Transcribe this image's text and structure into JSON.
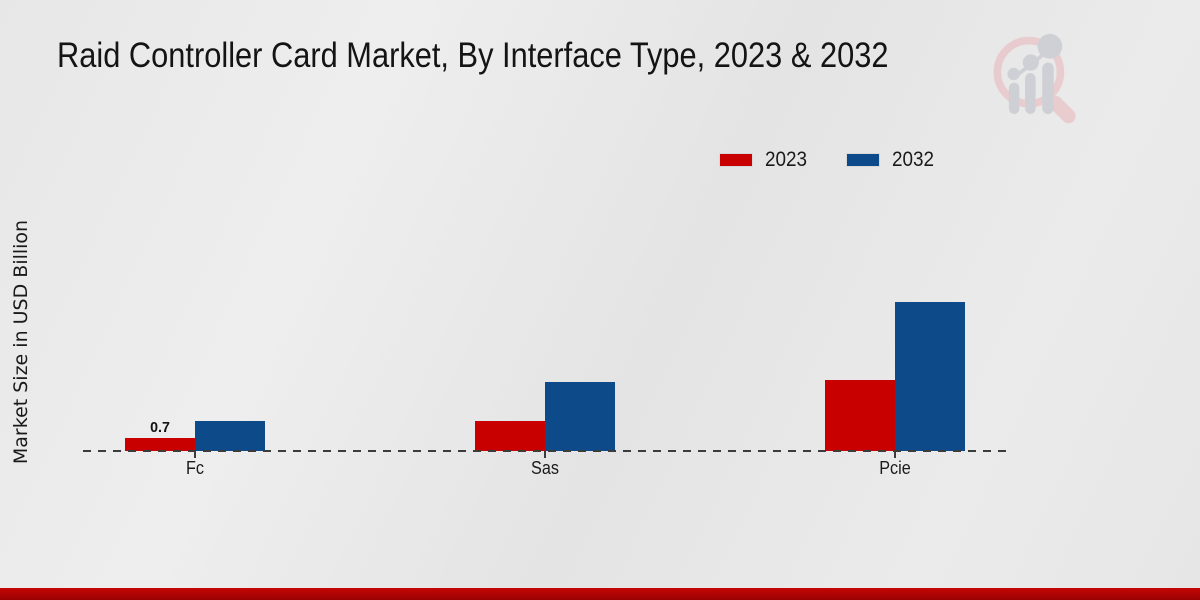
{
  "title": "Raid Controller Card Market, By Interface Type, 2023 & 2032",
  "y_axis_label": "Market Size in USD Billion",
  "legend": {
    "items": [
      {
        "label": "2023",
        "color": "#c80000"
      },
      {
        "label": "2032",
        "color": "#0d4a8a"
      }
    ],
    "position": "top-right"
  },
  "chart_data": {
    "type": "bar",
    "title": "Raid Controller Card Market, By Interface Type, 2023 & 2032",
    "categories": [
      "Fc",
      "Sas",
      "Pcie"
    ],
    "series": [
      {
        "name": "2023",
        "color": "#c80000",
        "values": [
          0.7,
          1.6,
          3.8
        ],
        "data_labels": [
          "0.7",
          "",
          ""
        ]
      },
      {
        "name": "2032",
        "color": "#0d4a8a",
        "values": [
          1.6,
          3.7,
          8.0
        ],
        "data_labels": [
          "",
          "",
          ""
        ]
      }
    ],
    "xlabel": "",
    "ylabel": "Market Size in USD Billion",
    "ylim": [
      0,
      15
    ],
    "grid": false,
    "baseline_style": "dashed",
    "legend_position": "top-right"
  },
  "icons": {
    "watermark": "market-research-future-logo"
  },
  "colors": {
    "background": "#e9e9e9",
    "footer_bar": "#b80404",
    "baseline": "#3c3c3c",
    "text": "#141414"
  }
}
